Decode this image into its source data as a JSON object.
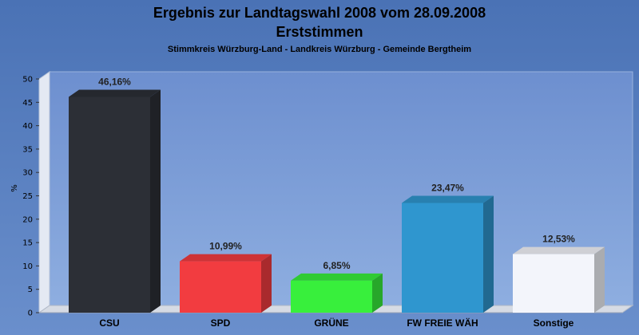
{
  "chart_data": {
    "type": "bar",
    "title": "Ergebnis zur Landtagswahl 2008 vom 28.09.2008",
    "subtitle": "Erststimmen",
    "caption": "Stimmkreis Würzburg-Land - Landkreis Würzburg - Gemeinde Bergtheim",
    "ylabel": "%",
    "xlabel": "",
    "ylim": [
      0,
      50
    ],
    "yticks": [
      0,
      5,
      10,
      15,
      20,
      25,
      30,
      35,
      40,
      45,
      50
    ],
    "grid": false,
    "legend": "none",
    "categories": [
      "CSU",
      "SPD",
      "GRÜNE",
      "FW FREIE WÄH",
      "Sonstige"
    ],
    "values": [
      46.16,
      10.99,
      6.85,
      23.47,
      12.53
    ],
    "value_labels": [
      "46,16%",
      "10,99%",
      "6,85%",
      "23,47%",
      "12,53%"
    ],
    "colors": [
      "#2c2f36",
      "#f23c40",
      "#38ef3c",
      "#2f96cf",
      "#f3f5fb"
    ]
  }
}
